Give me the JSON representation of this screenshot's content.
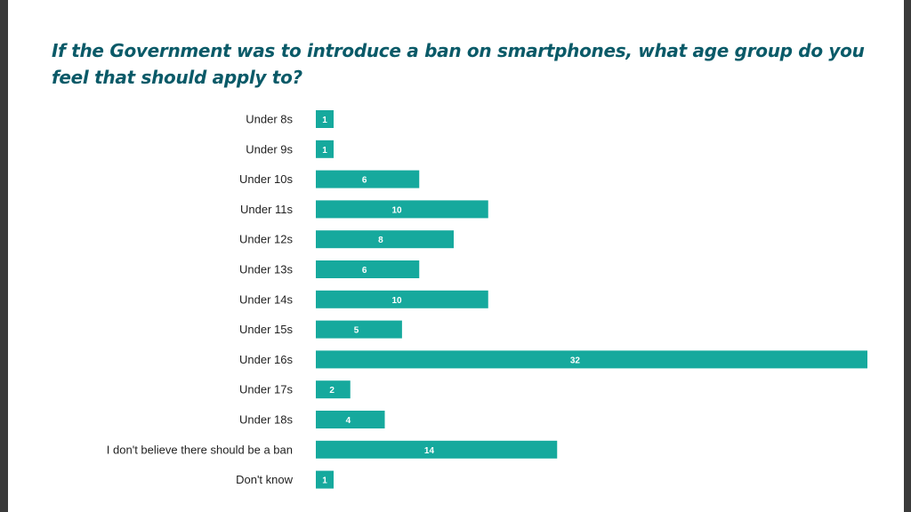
{
  "colors": {
    "bar": "#16a99d",
    "title": "#0a5a68",
    "label": "#222222",
    "value_label": "#ffffff"
  },
  "chart_data": {
    "type": "bar",
    "orientation": "horizontal",
    "title": "If the Government was to introduce a ban on smartphones, what age group do you feel that should apply to?",
    "xlabel": "",
    "ylabel": "",
    "grid": false,
    "legend": "none",
    "xlim": [
      0,
      32
    ],
    "categories": [
      "Under 8s",
      "Under 9s",
      "Under 10s",
      "Under 11s",
      "Under 12s",
      "Under 13s",
      "Under 14s",
      "Under 15s",
      "Under 16s",
      "Under 17s",
      "Under 18s",
      "I don't believe there should be a ban",
      "Don't know"
    ],
    "values": [
      1,
      1,
      6,
      10,
      8,
      6,
      10,
      5,
      32,
      2,
      4,
      14,
      1
    ]
  }
}
